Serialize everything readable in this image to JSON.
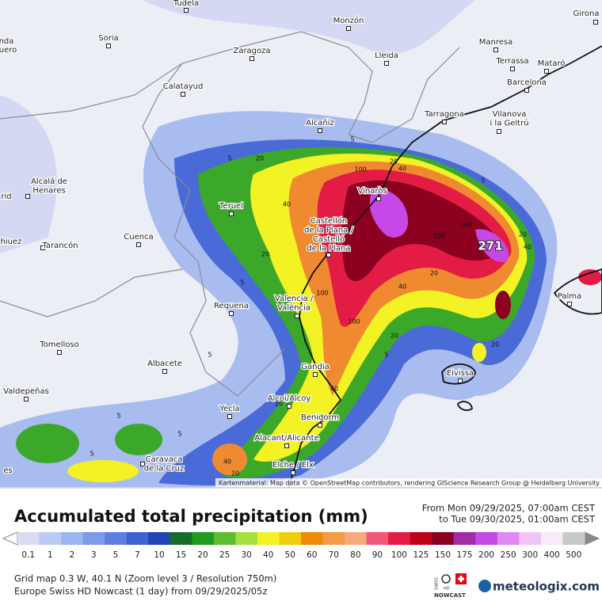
{
  "map": {
    "cities": [
      [
        "Tudela"
      ],
      [
        "Girona"
      ],
      [
        "Monzón"
      ],
      [
        "Soria"
      ],
      [
        "Zaragoza"
      ],
      [
        "Lleida"
      ],
      [
        "Manresa"
      ],
      [
        "Terrassa"
      ],
      [
        "Mataró"
      ],
      [
        "Barcelona"
      ],
      [
        "Calatayud"
      ],
      [
        "Tarragona"
      ],
      [
        "Vilanova",
        "i la Geltrú"
      ],
      [
        "Alcañiz"
      ],
      [
        "Alcalá de",
        "Henares"
      ],
      [
        "Teruel"
      ],
      [
        "Vinaròs"
      ],
      [
        "Castellón",
        "de la Plana /",
        "Castelló",
        "de la Plana"
      ],
      [
        "Cuenca"
      ],
      [
        "Tarancón"
      ],
      [
        "Requena"
      ],
      [
        "Valencia /",
        "València"
      ],
      [
        "Palma"
      ],
      [
        "Tomelloso"
      ],
      [
        "Albacete"
      ],
      [
        "Gandia"
      ],
      [
        "Eivissa"
      ],
      [
        "Valdepeñas"
      ],
      [
        "Alcoi/Alcoy"
      ],
      [
        "Yecla"
      ],
      [
        "Benidorm"
      ],
      [
        "Alacant/Alicante"
      ],
      [
        "Caravaca",
        "de la Cruz"
      ],
      [
        "Elche / Elx"
      ]
    ],
    "edge_labels": [
      "nda",
      "uero",
      "rid",
      "hiuez",
      "es"
    ],
    "contour_labels": [
      5,
      5,
      20,
      40,
      5,
      100,
      20,
      40,
      20,
      40,
      100,
      100,
      271,
      20,
      5,
      100,
      40,
      100,
      20,
      5,
      20,
      5,
      40,
      20,
      5,
      5,
      40,
      20,
      5,
      20
    ],
    "attribution": "Kartenmaterial: Map data © OpenStreetMap contributors, rendering GIScience Research Group @ Heidelberg University"
  },
  "header": {
    "title": "Accumulated total precipitation (mm)",
    "from": "From Mon 09/29/2025, 07:00am CEST",
    "to": "to Tue 09/30/2025, 01:00am CEST"
  },
  "legend": {
    "stops": [
      0.1,
      1,
      2,
      3,
      5,
      7,
      10,
      15,
      20,
      25,
      30,
      40,
      50,
      60,
      70,
      80,
      90,
      100,
      125,
      150,
      175,
      200,
      250,
      300,
      400,
      500
    ],
    "colors": [
      "#dadaf2",
      "#bccbf3",
      "#9db6f0",
      "#7d9be8",
      "#5e7fe0",
      "#3f62d2",
      "#2244b6",
      "#176c2c",
      "#1f9a22",
      "#5cbe2c",
      "#a6e040",
      "#f2f224",
      "#f0cc10",
      "#ee8a08",
      "#f49a48",
      "#f6aa7a",
      "#f0587a",
      "#e21c44",
      "#c00018",
      "#8c0020",
      "#a42aa8",
      "#c648e6",
      "#e088f2",
      "#f0c4f8",
      "#f8eaf8",
      "#c8c8c8"
    ]
  },
  "footer": {
    "grid": "Grid map 0.3 W, 40.1 N (Zoom level 3 / Resolution 750m)",
    "model": "Europe Swiss HD Nowcast (1 day) from 09/29/2025/05z",
    "badge": [
      "SWISS",
      "HD",
      "NOWCAST"
    ],
    "brand": "meteologix.com"
  }
}
